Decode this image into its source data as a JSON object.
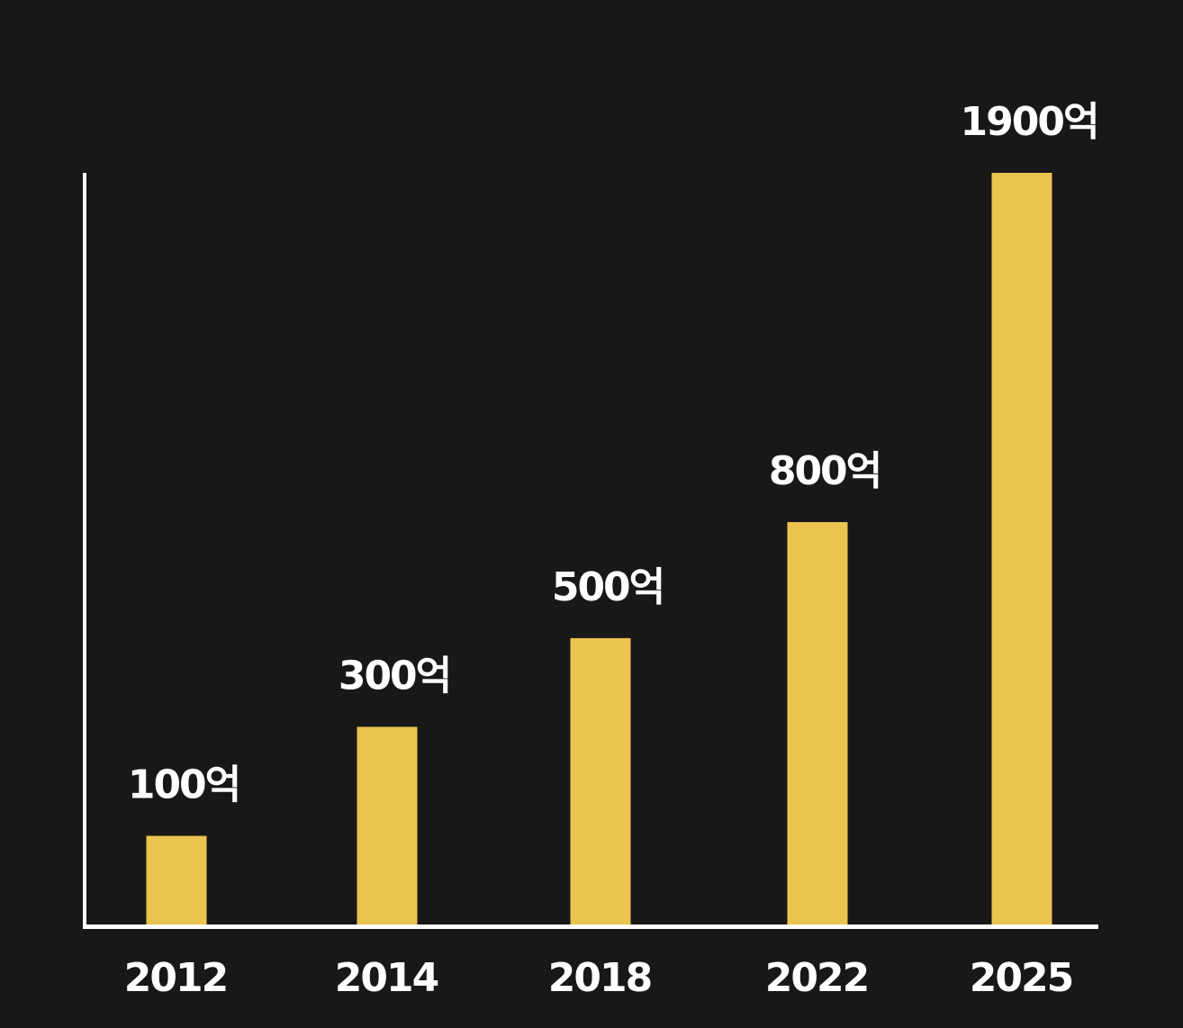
{
  "chart_data": {
    "type": "bar",
    "categories": [
      "2012",
      "2014",
      "2018",
      "2022",
      "2025"
    ],
    "values": [
      100,
      300,
      500,
      800,
      1900
    ],
    "value_labels": [
      "100억",
      "300억",
      "500억",
      "800억",
      "1900억"
    ],
    "unit": "억",
    "title": "",
    "xlabel": "",
    "ylabel": "",
    "grid": false,
    "legend": "none",
    "colors": {
      "background": "#181818",
      "bar": "#EBC34F",
      "axis": "#ffffff",
      "text": "#ffffff"
    }
  }
}
